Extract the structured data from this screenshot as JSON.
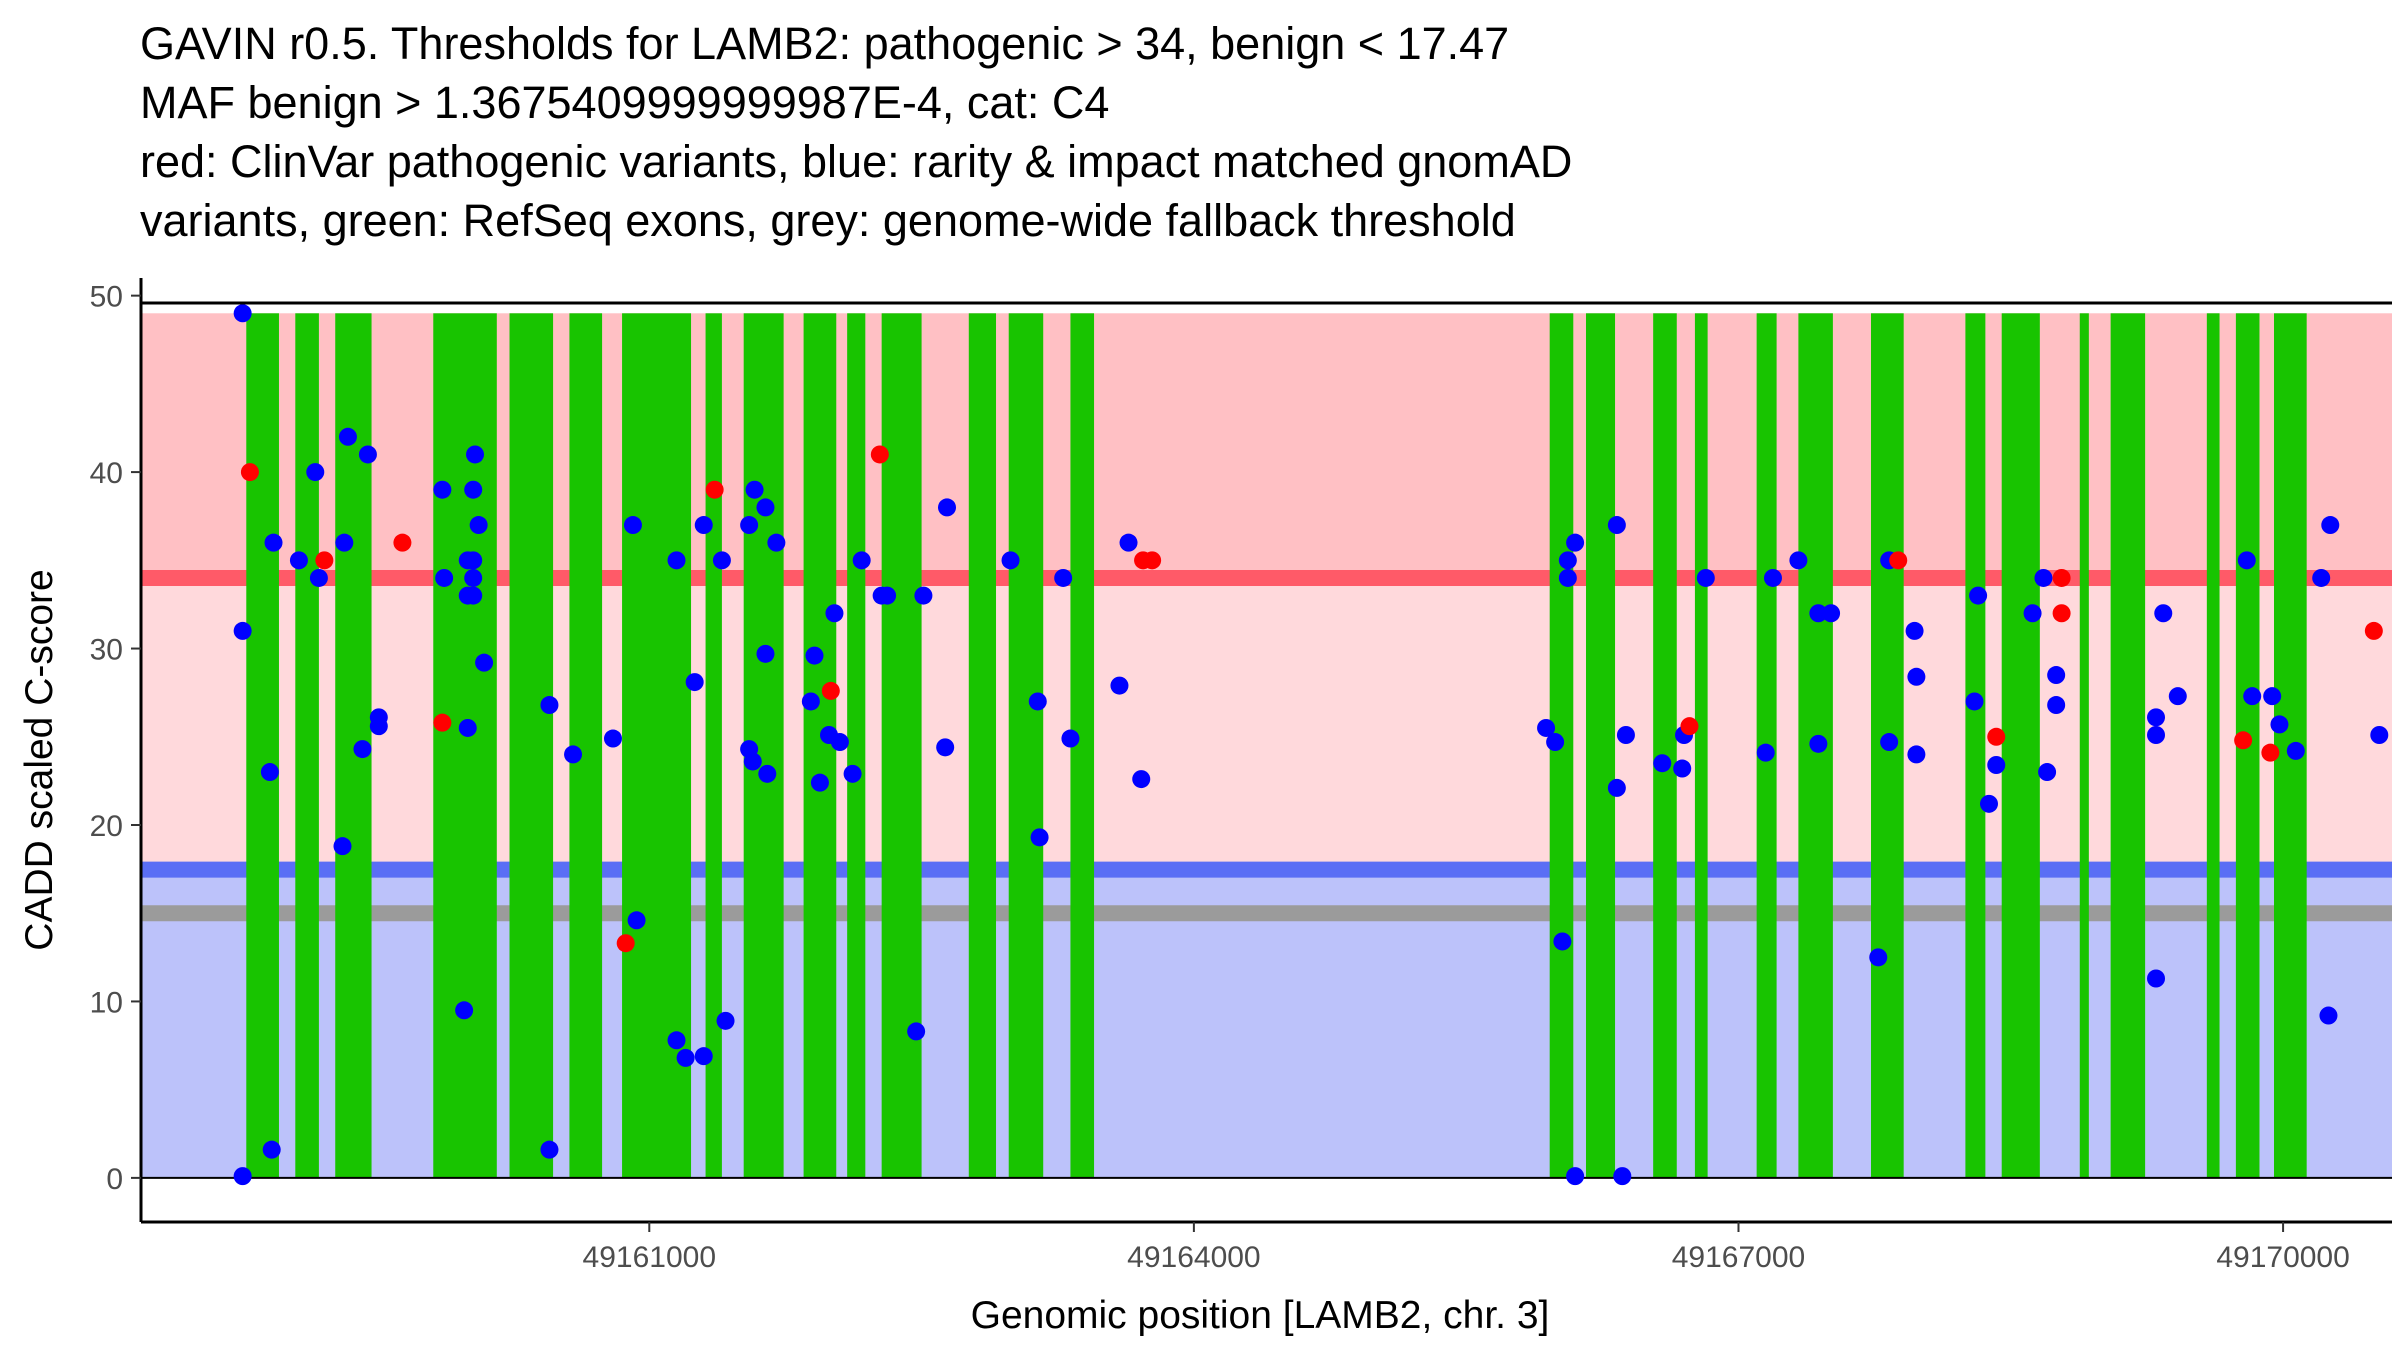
{
  "chart_data": {
    "type": "scatter",
    "title_lines": [
      "GAVIN r0.5. Thresholds for LAMB2: pathogenic > 34, benign < 17.47",
      "MAF benign > 1.3675409999999987E-4, cat: C4",
      "red: ClinVar pathogenic variants, blue: rarity & impact matched gnomAD",
      "variants, green: RefSeq exons, grey: genome-wide fallback threshold"
    ],
    "xlabel": "Genomic position [LAMB2, chr. 3]",
    "ylabel": "CADD scaled C-score",
    "xlim": [
      49158200,
      49170600
    ],
    "ylim": [
      -2.5,
      51
    ],
    "x_ticks": [
      49161000,
      49164000,
      49167000,
      49170000
    ],
    "x_tick_labels": [
      "49161000",
      "49164000",
      "49167000",
      "49170000"
    ],
    "y_ticks": [
      0,
      10,
      20,
      30,
      40,
      50
    ],
    "y_tick_labels": [
      "0",
      "10",
      "20",
      "30",
      "40",
      "50"
    ],
    "thresholds": {
      "pathogenic": 34,
      "benign": 17.47,
      "genome_wide_fallback": 15,
      "region_top": 49
    },
    "colors": {
      "pathogenic_region": "#ffc0c4",
      "middle_region": "#ffd9dc",
      "benign_region": "#bcc2fa",
      "pathogenic_line": "#ff5a68",
      "benign_line": "#5a6ef5",
      "fallback_line": "#9b9b9b",
      "exon": "#18c400",
      "clinvar": "#ff0000",
      "gnomad": "#0000ff"
    },
    "exons": [
      [
        49158780,
        49158960
      ],
      [
        49159050,
        49159180
      ],
      [
        49159270,
        49159470
      ],
      [
        49159810,
        49160160
      ],
      [
        49160230,
        49160470
      ],
      [
        49160560,
        49160740
      ],
      [
        49160850,
        49161230
      ],
      [
        49161310,
        49161400
      ],
      [
        49161520,
        49161740
      ],
      [
        49161850,
        49162030
      ],
      [
        49162090,
        49162190
      ],
      [
        49162280,
        49162500
      ],
      [
        49162760,
        49162910
      ],
      [
        49162980,
        49163170
      ],
      [
        49163320,
        49163450
      ],
      [
        49165960,
        49166090
      ],
      [
        49166160,
        49166320
      ],
      [
        49166530,
        49166660
      ],
      [
        49166760,
        49166830
      ],
      [
        49167100,
        49167210
      ],
      [
        49167330,
        49167520
      ],
      [
        49167730,
        49167910
      ],
      [
        49168250,
        49168360
      ],
      [
        49168450,
        49168660
      ],
      [
        49168880,
        49168930
      ],
      [
        49169050,
        49169240
      ],
      [
        49169580,
        49169650
      ],
      [
        49169740,
        49169870
      ],
      [
        49169950,
        49170130
      ]
    ],
    "series": [
      {
        "name": "gnomAD",
        "color": "#0000ff",
        "points": [
          [
            49158760,
            49
          ],
          [
            49158760,
            31
          ],
          [
            49158760,
            0.1
          ],
          [
            49158910,
            23
          ],
          [
            49158920,
            1.6
          ],
          [
            49158930,
            36
          ],
          [
            49159070,
            35
          ],
          [
            49159160,
            40
          ],
          [
            49159180,
            34
          ],
          [
            49159310,
            18.8
          ],
          [
            49159320,
            36
          ],
          [
            49159340,
            42
          ],
          [
            49159420,
            24.3
          ],
          [
            49159450,
            41
          ],
          [
            49159510,
            25.6
          ],
          [
            49159510,
            26.1
          ],
          [
            49159860,
            39
          ],
          [
            49159870,
            34
          ],
          [
            49159980,
            9.5
          ],
          [
            49160000,
            25.5
          ],
          [
            49160000,
            33
          ],
          [
            49160000,
            35
          ],
          [
            49160030,
            34
          ],
          [
            49160030,
            33
          ],
          [
            49160030,
            35
          ],
          [
            49160030,
            39
          ],
          [
            49160040,
            41
          ],
          [
            49160060,
            37
          ],
          [
            49160090,
            29.2
          ],
          [
            49160450,
            26.8
          ],
          [
            49160450,
            1.6
          ],
          [
            49160580,
            24
          ],
          [
            49160800,
            24.9
          ],
          [
            49160910,
            37
          ],
          [
            49160930,
            14.6
          ],
          [
            49161150,
            35
          ],
          [
            49161150,
            7.8
          ],
          [
            49161200,
            6.8
          ],
          [
            49161250,
            28.1
          ],
          [
            49161300,
            6.9
          ],
          [
            49161300,
            37
          ],
          [
            49161400,
            35
          ],
          [
            49161420,
            8.9
          ],
          [
            49161550,
            37
          ],
          [
            49161550,
            24.3
          ],
          [
            49161570,
            23.6
          ],
          [
            49161580,
            39
          ],
          [
            49161640,
            38
          ],
          [
            49161640,
            29.7
          ],
          [
            49161650,
            22.9
          ],
          [
            49161700,
            36
          ],
          [
            49161890,
            27
          ],
          [
            49161910,
            29.6
          ],
          [
            49161940,
            22.4
          ],
          [
            49161990,
            25.1
          ],
          [
            49162020,
            32
          ],
          [
            49162050,
            24.7
          ],
          [
            49162120,
            22.9
          ],
          [
            49162170,
            35
          ],
          [
            49162280,
            33
          ],
          [
            49162310,
            33
          ],
          [
            49162470,
            8.3
          ],
          [
            49162510,
            33
          ],
          [
            49162630,
            24.4
          ],
          [
            49162640,
            38
          ],
          [
            49162990,
            35
          ],
          [
            49163140,
            27
          ],
          [
            49163150,
            19.3
          ],
          [
            49163280,
            34
          ],
          [
            49163320,
            24.9
          ],
          [
            49163590,
            27.9
          ],
          [
            49163640,
            36
          ],
          [
            49163710,
            22.6
          ],
          [
            49165940,
            25.5
          ],
          [
            49165990,
            24.7
          ],
          [
            49166030,
            13.4
          ],
          [
            49166060,
            35
          ],
          [
            49166060,
            34
          ],
          [
            49166100,
            36
          ],
          [
            49166100,
            0.1
          ],
          [
            49166330,
            37
          ],
          [
            49166330,
            22.1
          ],
          [
            49166360,
            0.1
          ],
          [
            49166380,
            25.1
          ],
          [
            49166580,
            23.5
          ],
          [
            49166690,
            23.2
          ],
          [
            49166700,
            25.1
          ],
          [
            49166820,
            34
          ],
          [
            49167150,
            24.1
          ],
          [
            49167190,
            34
          ],
          [
            49167330,
            35
          ],
          [
            49167440,
            24.6
          ],
          [
            49167440,
            32
          ],
          [
            49167510,
            32
          ],
          [
            49167770,
            12.5
          ],
          [
            49167830,
            24.7
          ],
          [
            49167830,
            35
          ],
          [
            49167970,
            31
          ],
          [
            49167980,
            28.4
          ],
          [
            49167980,
            24
          ],
          [
            49168300,
            27
          ],
          [
            49168320,
            33
          ],
          [
            49168380,
            21.2
          ],
          [
            49168420,
            23.4
          ],
          [
            49168620,
            32
          ],
          [
            49168680,
            34
          ],
          [
            49168700,
            23
          ],
          [
            49168750,
            26.8
          ],
          [
            49168750,
            28.5
          ],
          [
            49169300,
            25.1
          ],
          [
            49169300,
            11.3
          ],
          [
            49169300,
            26.1
          ],
          [
            49169340,
            32
          ],
          [
            49169420,
            27.3
          ],
          [
            49169800,
            35
          ],
          [
            49169830,
            27.3
          ],
          [
            49169940,
            27.3
          ],
          [
            49169980,
            25.7
          ],
          [
            49170070,
            24.2
          ],
          [
            49170210,
            34
          ],
          [
            49170250,
            9.2
          ],
          [
            49170260,
            37
          ],
          [
            49170530,
            25.1
          ]
        ]
      },
      {
        "name": "ClinVar",
        "color": "#ff0000",
        "points": [
          [
            49158800,
            40
          ],
          [
            49159210,
            35
          ],
          [
            49159640,
            36
          ],
          [
            49159860,
            25.8
          ],
          [
            49160870,
            13.3
          ],
          [
            49161360,
            39
          ],
          [
            49162000,
            27.6
          ],
          [
            49162270,
            41
          ],
          [
            49163720,
            35
          ],
          [
            49163770,
            35
          ],
          [
            49166730,
            25.6
          ],
          [
            49167880,
            35
          ],
          [
            49168420,
            25
          ],
          [
            49168780,
            34
          ],
          [
            49168780,
            32
          ],
          [
            49169780,
            24.8
          ],
          [
            49169930,
            24.1
          ],
          [
            49170500,
            31
          ]
        ]
      }
    ]
  }
}
